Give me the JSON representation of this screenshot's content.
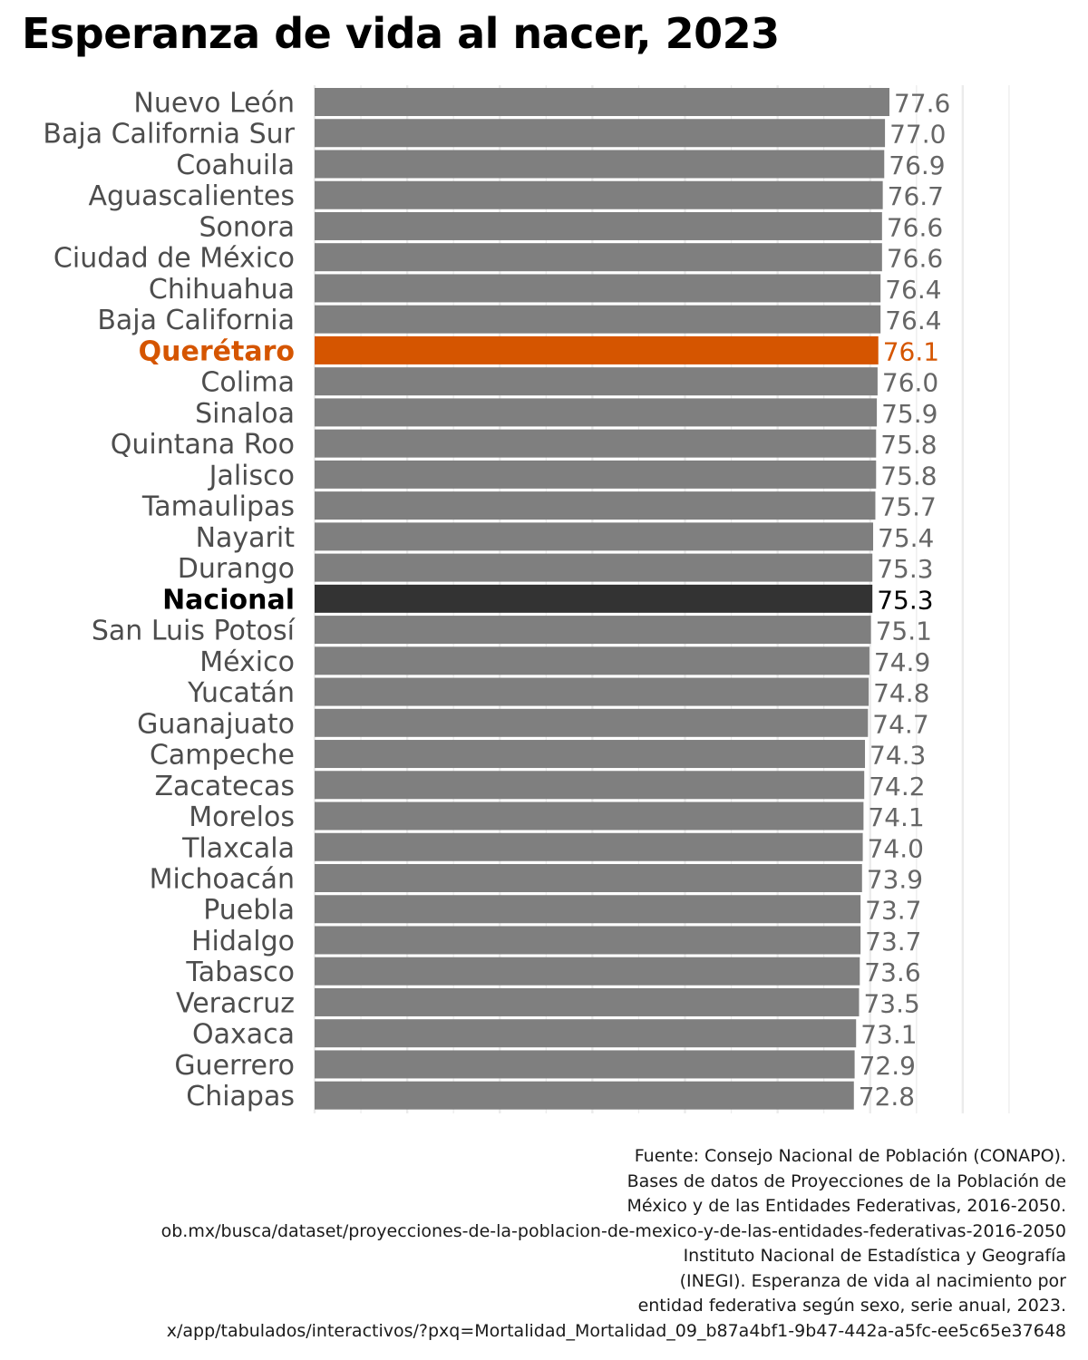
{
  "chart_data": {
    "type": "bar",
    "orientation": "horizontal",
    "title": "Esperanza de vida al nacer, 2023",
    "xlabel": "",
    "ylabel": "",
    "grid": true,
    "legend": "none",
    "data_labels": true,
    "colors": {
      "default": "#7f7f7f",
      "highlight": "#d55500",
      "national": "#333333",
      "label_default": "#666666",
      "label_highlight": "#d55500",
      "label_national": "#000000"
    },
    "highlight": "Querétaro",
    "national": "Nacional",
    "categories": [
      "Nuevo León",
      "Baja California Sur",
      "Coahuila",
      "Aguascalientes",
      "Sonora",
      "Ciudad de México",
      "Chihuahua",
      "Baja California",
      "Querétaro",
      "Colima",
      "Sinaloa",
      "Quintana Roo",
      "Jalisco",
      "Tamaulipas",
      "Nayarit",
      "Durango",
      "Nacional",
      "San Luis Potosí",
      "México",
      "Yucatán",
      "Guanajuato",
      "Campeche",
      "Zacatecas",
      "Morelos",
      "Tlaxcala",
      "Michoacán",
      "Puebla",
      "Hidalgo",
      "Tabasco",
      "Veracruz",
      "Oaxaca",
      "Guerrero",
      "Chiapas"
    ],
    "values": [
      77.6,
      77.0,
      76.9,
      76.7,
      76.6,
      76.6,
      76.4,
      76.4,
      76.1,
      76.0,
      75.9,
      75.8,
      75.8,
      75.7,
      75.4,
      75.3,
      75.3,
      75.1,
      74.9,
      74.8,
      74.7,
      74.3,
      74.2,
      74.1,
      74.0,
      73.9,
      73.7,
      73.7,
      73.6,
      73.5,
      73.1,
      72.9,
      72.8
    ],
    "value_labels": [
      "77.6",
      "77.0",
      "76.9",
      "76.7",
      "76.6",
      "76.6",
      "76.4",
      "76.4",
      "76.1",
      "76.0",
      "75.9",
      "75.8",
      "75.8",
      "75.7",
      "75.4",
      "75.3",
      "75.3",
      "75.1",
      "74.9",
      "74.8",
      "74.7",
      "74.3",
      "74.2",
      "74.1",
      "74.0",
      "73.9",
      "73.7",
      "73.7",
      "73.6",
      "73.5",
      "73.1",
      "72.9",
      "72.8"
    ],
    "xlim": [
      0,
      97.5
    ]
  },
  "source": [
    "Fuente: Consejo Nacional de Población (CONAPO).",
    "Bases de datos de Proyecciones de la Población de",
    "México y de las Entidades Federativas, 2016-2050.",
    "ob.mx/busca/dataset/proyecciones-de-la-poblacion-de-mexico-y-de-las-entidades-federativas-2016-2050",
    "Instituto Nacional de Estadística y Geografía",
    "(INEGI). Esperanza de vida al nacimiento por",
    "entidad federativa según sexo, serie anual, 2023.",
    "x/app/tabulados/interactivos/?pxq=Mortalidad_Mortalidad_09_b87a4bf1-9b47-442a-a5fc-ee5c65e37648"
  ]
}
